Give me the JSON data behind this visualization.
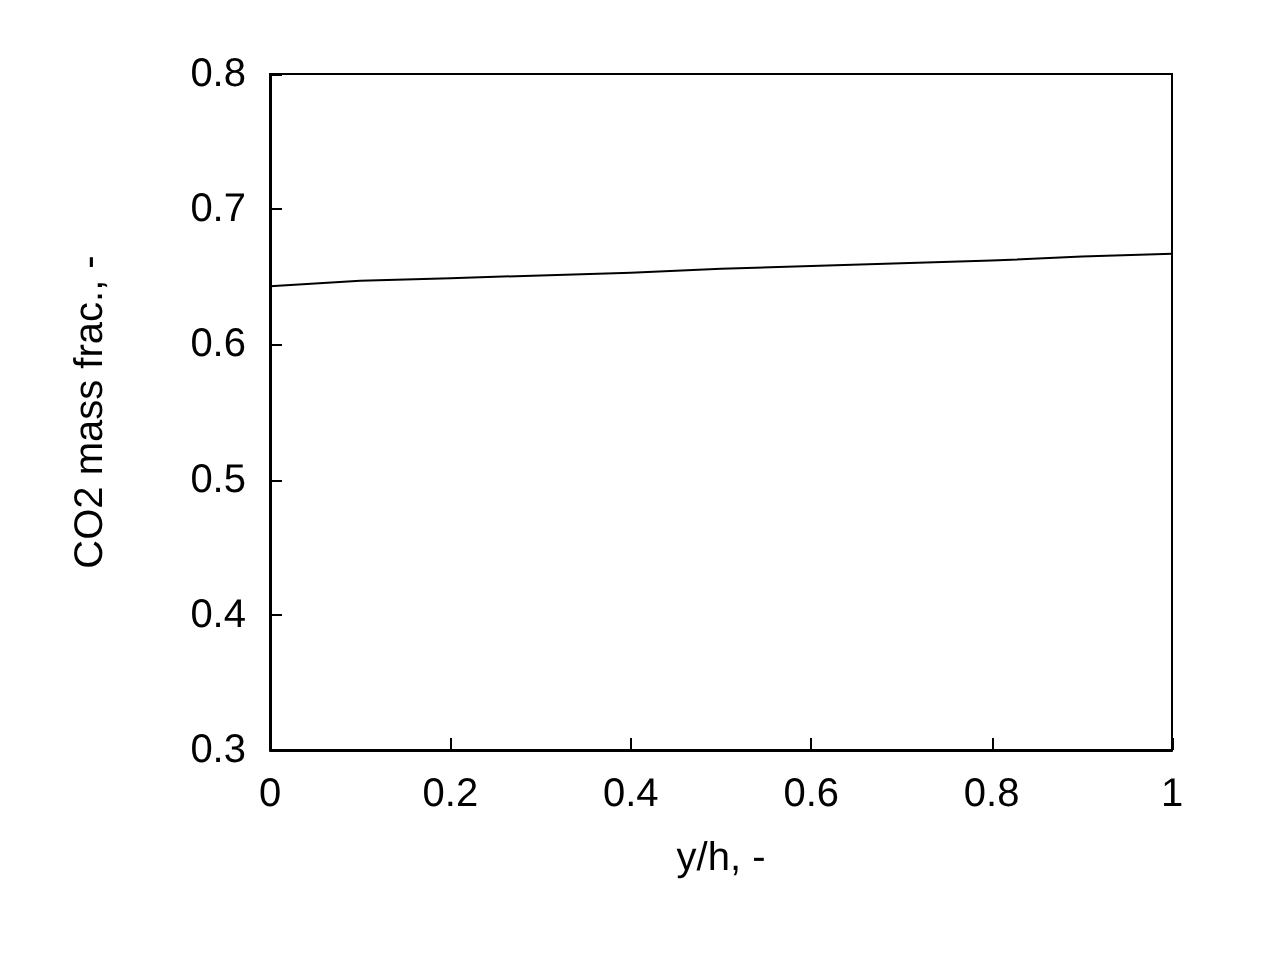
{
  "chart_data": {
    "type": "line",
    "xlabel": "y/h, -",
    "ylabel": "CO2 mass frac., -",
    "x": [
      0,
      0.1,
      0.2,
      0.3,
      0.4,
      0.5,
      0.6,
      0.7,
      0.8,
      0.9,
      1
    ],
    "series": [
      {
        "color": "#000000",
        "values": [
          0.643,
          0.647,
          0.649,
          0.651,
          0.653,
          0.656,
          0.658,
          0.66,
          0.662,
          0.665,
          0.667
        ]
      }
    ],
    "xlim": [
      0,
      1
    ],
    "xticks": [
      0,
      0.2,
      0.4,
      0.6,
      0.8,
      1
    ],
    "ylim": [
      0.3,
      0.8
    ],
    "yticks": [
      0.3,
      0.4,
      0.5,
      0.6,
      0.7,
      0.8
    ],
    "marker": "none",
    "line_style": "solid"
  }
}
